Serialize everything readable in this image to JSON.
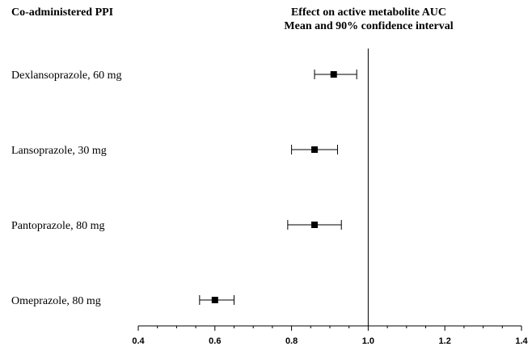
{
  "header": {
    "left_title": "Co-administered PPI",
    "right_title_line1": "Effect on active metabolite AUC",
    "right_title_line2": "Mean and 90% confidence interval"
  },
  "chart_data": {
    "type": "forest",
    "title": "Effect on active metabolite AUC",
    "subtitle": "Mean and 90% confidence interval",
    "categories": [
      "Dexlansoprazole, 60 mg",
      "Lansoprazole, 30 mg",
      "Pantoprazole, 80 mg",
      "Omeprazole, 80 mg"
    ],
    "series": [
      {
        "points": [
          {
            "category": "Dexlansoprazole, 60 mg",
            "mean": 0.91,
            "ci_low": 0.86,
            "ci_high": 0.97
          },
          {
            "category": "Lansoprazole, 30 mg",
            "mean": 0.86,
            "ci_low": 0.8,
            "ci_high": 0.92
          },
          {
            "category": "Pantoprazole, 80 mg",
            "mean": 0.86,
            "ci_low": 0.79,
            "ci_high": 0.93
          },
          {
            "category": "Omeprazole, 80 mg",
            "mean": 0.6,
            "ci_low": 0.56,
            "ci_high": 0.65
          }
        ]
      }
    ],
    "xlim": [
      0.4,
      1.4
    ],
    "xticks": [
      "0.4",
      "0.6",
      "0.8",
      "1.0",
      "1.2",
      "1.4"
    ],
    "xtick_values": [
      0.4,
      0.6,
      0.8,
      1.0,
      1.2,
      1.4
    ],
    "minor_tick_step": 0.05,
    "reference_line": 1.0,
    "grid": false,
    "marker": "square",
    "colors": {
      "line": "#000000",
      "marker": "#000000"
    }
  }
}
